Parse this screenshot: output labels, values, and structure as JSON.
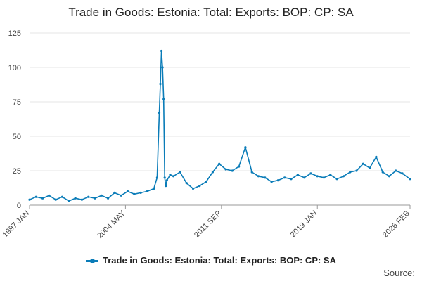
{
  "chart_data": {
    "type": "line",
    "title": "Trade in Goods: Estonia: Total: Exports: BOP: CP: SA",
    "xlabel": "",
    "ylabel": "",
    "ylim": [
      0,
      125
    ],
    "yticks": [
      0,
      25,
      50,
      75,
      100,
      125
    ],
    "xlim": [
      "1997 JAN",
      "2026 FEB"
    ],
    "xticks": [
      "1997 JAN",
      "2004 MAY",
      "2011 SEP",
      "2019 JAN",
      "2026 FEB"
    ],
    "grid": "horizontal",
    "legend_position": "bottom",
    "line_color": "#0a7cb8",
    "series": [
      {
        "name": "Trade in Goods: Estonia: Total: Exports: BOP: CP: SA",
        "x": [
          "1997-01",
          "1997-07",
          "1998-01",
          "1998-07",
          "1999-01",
          "1999-07",
          "2000-01",
          "2000-07",
          "2001-01",
          "2001-07",
          "2002-01",
          "2002-07",
          "2003-01",
          "2003-07",
          "2004-01",
          "2004-07",
          "2005-01",
          "2005-07",
          "2006-01",
          "2006-07",
          "2006-10",
          "2006-12",
          "2007-01",
          "2007-02",
          "2007-03",
          "2007-04",
          "2007-05",
          "2007-06",
          "2007-07",
          "2007-10",
          "2008-01",
          "2008-07",
          "2009-01",
          "2009-07",
          "2010-01",
          "2010-07",
          "2011-01",
          "2011-07",
          "2012-01",
          "2012-07",
          "2013-01",
          "2013-07",
          "2014-01",
          "2014-07",
          "2015-01",
          "2015-07",
          "2016-01",
          "2016-07",
          "2017-01",
          "2017-07",
          "2018-01",
          "2018-07",
          "2019-01",
          "2019-07",
          "2020-01",
          "2020-07",
          "2021-01",
          "2021-07",
          "2022-01",
          "2022-07",
          "2023-01",
          "2023-07",
          "2024-01",
          "2024-07",
          "2025-01",
          "2025-07",
          "2026-02"
        ],
        "values": [
          4,
          6,
          5,
          7,
          4,
          6,
          3,
          5,
          4,
          6,
          5,
          7,
          5,
          9,
          7,
          10,
          8,
          9,
          10,
          12,
          20,
          67,
          88,
          112,
          100,
          77,
          20,
          14,
          18,
          22,
          21,
          24,
          16,
          12,
          14,
          17,
          24,
          30,
          26,
          25,
          28,
          42,
          24,
          21,
          20,
          17,
          18,
          20,
          19,
          22,
          20,
          23,
          21,
          20,
          22,
          19,
          21,
          24,
          25,
          30,
          27,
          35,
          24,
          21,
          25,
          23,
          19
        ]
      }
    ]
  },
  "legend": {
    "label": "Trade in Goods: Estonia: Total: Exports: BOP: CP: SA"
  },
  "footer": {
    "source_label": "Source:"
  }
}
